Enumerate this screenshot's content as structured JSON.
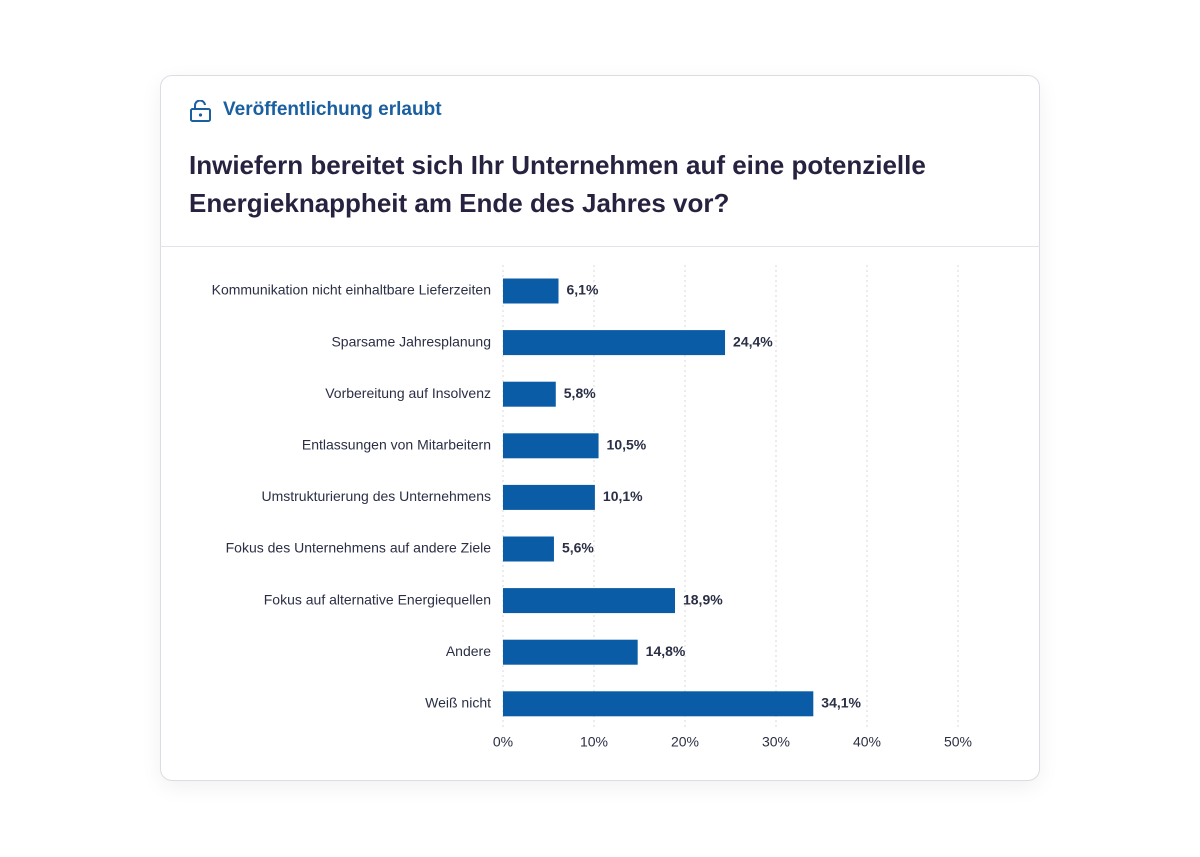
{
  "header": {
    "label": "Veröffentlichung erlaubt"
  },
  "chart_data": {
    "type": "bar",
    "orientation": "horizontal",
    "title": "Inwiefern bereitet sich Ihr Unternehmen auf eine potenzielle Energieknappheit am Ende des Jahres vor?",
    "categories": [
      "Kommunikation nicht einhaltbare Lieferzeiten",
      "Sparsame Jahresplanung",
      "Vorbereitung auf Insolvenz",
      "Entlassungen von Mitarbeitern",
      "Umstrukturierung des Unternehmens",
      "Fokus des Unternehmens auf andere Ziele",
      "Fokus auf alternative Energiequellen",
      "Andere",
      "Weiß nicht"
    ],
    "values": [
      6.1,
      24.4,
      5.8,
      10.5,
      10.1,
      5.6,
      18.9,
      14.8,
      34.1
    ],
    "value_labels": [
      "6,1%",
      "24,4%",
      "5,8%",
      "10,5%",
      "10,1%",
      "5,6%",
      "18,9%",
      "14,8%",
      "34,1%"
    ],
    "color": "#0b5ca6",
    "xlim": [
      0,
      50
    ],
    "xticks": [
      {
        "value": 0,
        "label": "0%"
      },
      {
        "value": 10,
        "label": "10%"
      },
      {
        "value": 20,
        "label": "20%"
      },
      {
        "value": 30,
        "label": "30%"
      },
      {
        "value": 40,
        "label": "40%"
      },
      {
        "value": 50,
        "label": "50%"
      }
    ],
    "grid": true
  }
}
